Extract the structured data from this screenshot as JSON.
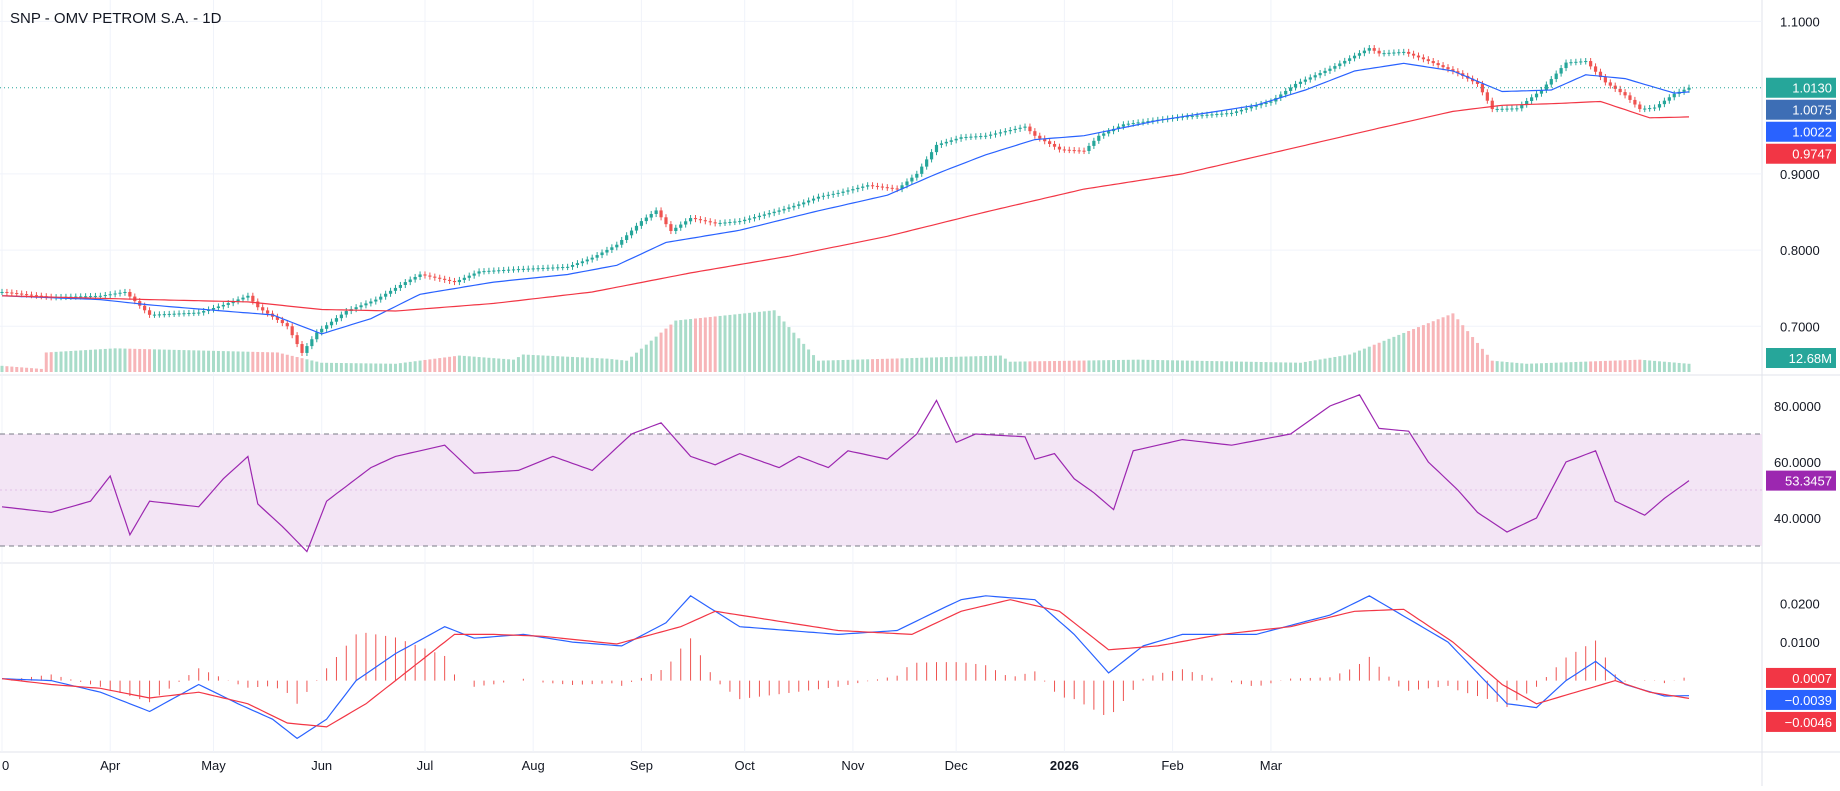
{
  "header": {
    "title": "SNP - OMV PETROM S.A. - 1D"
  },
  "colors": {
    "up": "#26a69a",
    "down": "#ef5350",
    "vol_up": "#a8dcc9",
    "vol_down": "#f7b5b8",
    "sma_short": "#2962ff",
    "sma_long": "#f23645",
    "rsi": "#9c27b0",
    "rsi_band": "#f3e5f5",
    "macd": "#2962ff",
    "signal": "#f23645",
    "hist": "#ef5350",
    "price_line": "#26a69a"
  },
  "chart_data": [
    {
      "type": "candlestick",
      "name": "price",
      "x_ticks": [
        "0",
        "Apr",
        "May",
        "Jun",
        "Jul",
        "Aug",
        "Sep",
        "Oct",
        "Nov",
        "Dec",
        "2026",
        "Feb",
        "Mar"
      ],
      "y_ticks": [
        "1.1000",
        "0.9000",
        "0.8000",
        "0.7000"
      ],
      "ylim": [
        0.64,
        1.115
      ],
      "last_close": 1.013,
      "price_path": [
        [
          0,
          0.745
        ],
        [
          10,
          0.738
        ],
        [
          20,
          0.74
        ],
        [
          25,
          0.745
        ],
        [
          30,
          0.715
        ],
        [
          40,
          0.718
        ],
        [
          45,
          0.728
        ],
        [
          50,
          0.74
        ],
        [
          52,
          0.725
        ],
        [
          58,
          0.7
        ],
        [
          61,
          0.665
        ],
        [
          64,
          0.692
        ],
        [
          70,
          0.72
        ],
        [
          76,
          0.735
        ],
        [
          82,
          0.758
        ],
        [
          85,
          0.768
        ],
        [
          92,
          0.758
        ],
        [
          97,
          0.772
        ],
        [
          105,
          0.775
        ],
        [
          115,
          0.778
        ],
        [
          120,
          0.79
        ],
        [
          125,
          0.807
        ],
        [
          130,
          0.838
        ],
        [
          133,
          0.852
        ],
        [
          136,
          0.825
        ],
        [
          140,
          0.842
        ],
        [
          145,
          0.835
        ],
        [
          150,
          0.838
        ],
        [
          158,
          0.852
        ],
        [
          162,
          0.86
        ],
        [
          166,
          0.87
        ],
        [
          170,
          0.875
        ],
        [
          176,
          0.885
        ],
        [
          182,
          0.88
        ],
        [
          186,
          0.9
        ],
        [
          190,
          0.938
        ],
        [
          195,
          0.948
        ],
        [
          200,
          0.95
        ],
        [
          208,
          0.962
        ],
        [
          210,
          0.95
        ],
        [
          215,
          0.932
        ],
        [
          220,
          0.93
        ],
        [
          223,
          0.95
        ],
        [
          228,
          0.965
        ],
        [
          240,
          0.975
        ],
        [
          250,
          0.98
        ],
        [
          255,
          0.99
        ],
        [
          258,
          0.995
        ],
        [
          263,
          1.018
        ],
        [
          270,
          1.038
        ],
        [
          275,
          1.055
        ],
        [
          278,
          1.065
        ],
        [
          280,
          1.058
        ],
        [
          285,
          1.06
        ],
        [
          290,
          1.048
        ],
        [
          296,
          1.032
        ],
        [
          300,
          1.018
        ],
        [
          303,
          0.985
        ],
        [
          308,
          0.986
        ],
        [
          313,
          1.01
        ],
        [
          318,
          1.046
        ],
        [
          322,
          1.048
        ],
        [
          326,
          1.02
        ],
        [
          330,
          1.003
        ],
        [
          333,
          0.985
        ],
        [
          336,
          0.987
        ],
        [
          340,
          1.005
        ],
        [
          343,
          1.013
        ]
      ],
      "sma_short_path": [
        [
          0,
          0.74
        ],
        [
          20,
          0.735
        ],
        [
          30,
          0.728
        ],
        [
          45,
          0.72
        ],
        [
          55,
          0.715
        ],
        [
          65,
          0.69
        ],
        [
          75,
          0.71
        ],
        [
          85,
          0.742
        ],
        [
          100,
          0.758
        ],
        [
          115,
          0.768
        ],
        [
          125,
          0.78
        ],
        [
          135,
          0.81
        ],
        [
          150,
          0.826
        ],
        [
          165,
          0.85
        ],
        [
          180,
          0.872
        ],
        [
          190,
          0.9
        ],
        [
          200,
          0.925
        ],
        [
          210,
          0.945
        ],
        [
          220,
          0.95
        ],
        [
          235,
          0.97
        ],
        [
          255,
          0.99
        ],
        [
          265,
          1.01
        ],
        [
          275,
          1.035
        ],
        [
          285,
          1.045
        ],
        [
          295,
          1.035
        ],
        [
          305,
          1.008
        ],
        [
          315,
          1.01
        ],
        [
          322,
          1.03
        ],
        [
          330,
          1.025
        ],
        [
          340,
          1.006
        ],
        [
          343,
          1.0075
        ]
      ],
      "sma_long_path": [
        [
          0,
          0.74
        ],
        [
          30,
          0.735
        ],
        [
          50,
          0.732
        ],
        [
          65,
          0.722
        ],
        [
          80,
          0.72
        ],
        [
          100,
          0.73
        ],
        [
          120,
          0.745
        ],
        [
          140,
          0.77
        ],
        [
          160,
          0.792
        ],
        [
          180,
          0.818
        ],
        [
          200,
          0.85
        ],
        [
          220,
          0.88
        ],
        [
          240,
          0.9
        ],
        [
          260,
          0.93
        ],
        [
          280,
          0.96
        ],
        [
          295,
          0.982
        ],
        [
          305,
          0.99
        ],
        [
          315,
          0.992
        ],
        [
          325,
          0.995
        ],
        [
          335,
          0.9735
        ],
        [
          343,
          0.9747
        ]
      ],
      "volume_path": [
        [
          0,
          6
        ],
        [
          8,
          3
        ],
        [
          9,
          19
        ],
        [
          23,
          23
        ],
        [
          56,
          19
        ],
        [
          65,
          9
        ],
        [
          80,
          8
        ],
        [
          93,
          16
        ],
        [
          104,
          12
        ],
        [
          106,
          17
        ],
        [
          123,
          13
        ],
        [
          127,
          11
        ],
        [
          137,
          50
        ],
        [
          157,
          60
        ],
        [
          166,
          11
        ],
        [
          203,
          16
        ],
        [
          205,
          10
        ],
        [
          231,
          12
        ],
        [
          264,
          9
        ],
        [
          274,
          17
        ],
        [
          295,
          57
        ],
        [
          303,
          11
        ],
        [
          310,
          8
        ],
        [
          333,
          12
        ],
        [
          343,
          8
        ]
      ],
      "price_tags": [
        {
          "label": "1.0130",
          "value": 1.013,
          "color": "#26a69a"
        },
        {
          "label": "1.0075",
          "value": 1.0075,
          "color": "#3d6eb5"
        },
        {
          "label": "1.0022",
          "value": 1.0022,
          "color": "#2962ff"
        },
        {
          "label": "0.9747",
          "value": 0.9747,
          "color": "#f23645"
        }
      ],
      "volume_label": "12.68M"
    },
    {
      "type": "line",
      "name": "rsi",
      "y_ticks": [
        "80.0000",
        "60.0000",
        "40.0000"
      ],
      "ylim": [
        25,
        90
      ],
      "band": [
        30,
        70
      ],
      "last_value_label": "53.3457",
      "path": [
        [
          0,
          44
        ],
        [
          10,
          42
        ],
        [
          18,
          46
        ],
        [
          22,
          55
        ],
        [
          26,
          34
        ],
        [
          30,
          46
        ],
        [
          40,
          44
        ],
        [
          45,
          54
        ],
        [
          50,
          62
        ],
        [
          52,
          45
        ],
        [
          57,
          37
        ],
        [
          62,
          28
        ],
        [
          66,
          46
        ],
        [
          75,
          58
        ],
        [
          80,
          62
        ],
        [
          90,
          66
        ],
        [
          96,
          56
        ],
        [
          105,
          57
        ],
        [
          112,
          62
        ],
        [
          120,
          57
        ],
        [
          128,
          70
        ],
        [
          134,
          74
        ],
        [
          140,
          62
        ],
        [
          145,
          59
        ],
        [
          150,
          63
        ],
        [
          158,
          58
        ],
        [
          162,
          62
        ],
        [
          168,
          58
        ],
        [
          172,
          64
        ],
        [
          180,
          61
        ],
        [
          186,
          70
        ],
        [
          190,
          82
        ],
        [
          194,
          67
        ],
        [
          198,
          70
        ],
        [
          208,
          69
        ],
        [
          210,
          61
        ],
        [
          214,
          63
        ],
        [
          218,
          54
        ],
        [
          222,
          49
        ],
        [
          226,
          43
        ],
        [
          230,
          64
        ],
        [
          240,
          68
        ],
        [
          250,
          66
        ],
        [
          256,
          68
        ],
        [
          262,
          70
        ],
        [
          270,
          80
        ],
        [
          276,
          84
        ],
        [
          280,
          72
        ],
        [
          286,
          71
        ],
        [
          290,
          60
        ],
        [
          296,
          50
        ],
        [
          300,
          42
        ],
        [
          306,
          35
        ],
        [
          312,
          40
        ],
        [
          318,
          60
        ],
        [
          324,
          64
        ],
        [
          328,
          46
        ],
        [
          334,
          41
        ],
        [
          338,
          47
        ],
        [
          343,
          53.35
        ]
      ]
    },
    {
      "type": "line",
      "name": "macd",
      "y_ticks": [
        "0.0200",
        "0.0100"
      ],
      "ylim": [
        -0.018,
        0.03
      ],
      "macd_path": [
        [
          0,
          0.0005
        ],
        [
          10,
          0.0
        ],
        [
          15,
          -0.0015
        ],
        [
          20,
          -0.003
        ],
        [
          30,
          -0.008
        ],
        [
          40,
          -0.001
        ],
        [
          48,
          -0.006
        ],
        [
          55,
          -0.01
        ],
        [
          60,
          -0.015
        ],
        [
          66,
          -0.01
        ],
        [
          72,
          0.0
        ],
        [
          80,
          0.007
        ],
        [
          90,
          0.014
        ],
        [
          96,
          0.011
        ],
        [
          106,
          0.012
        ],
        [
          116,
          0.01
        ],
        [
          126,
          0.009
        ],
        [
          135,
          0.015
        ],
        [
          140,
          0.022
        ],
        [
          150,
          0.014
        ],
        [
          160,
          0.013
        ],
        [
          170,
          0.012
        ],
        [
          182,
          0.013
        ],
        [
          190,
          0.018
        ],
        [
          195,
          0.021
        ],
        [
          200,
          0.022
        ],
        [
          210,
          0.021
        ],
        [
          218,
          0.012
        ],
        [
          225,
          0.002
        ],
        [
          232,
          0.009
        ],
        [
          240,
          0.012
        ],
        [
          255,
          0.012
        ],
        [
          270,
          0.017
        ],
        [
          278,
          0.022
        ],
        [
          286,
          0.016
        ],
        [
          294,
          0.01
        ],
        [
          300,
          0.002
        ],
        [
          306,
          -0.006
        ],
        [
          312,
          -0.007
        ],
        [
          318,
          0.0
        ],
        [
          324,
          0.005
        ],
        [
          330,
          -0.001
        ],
        [
          338,
          -0.004
        ],
        [
          343,
          -0.0039
        ]
      ],
      "signal_path": [
        [
          0,
          0.0005
        ],
        [
          10,
          -0.001
        ],
        [
          20,
          -0.002
        ],
        [
          30,
          -0.0045
        ],
        [
          40,
          -0.003
        ],
        [
          50,
          -0.006
        ],
        [
          58,
          -0.011
        ],
        [
          66,
          -0.012
        ],
        [
          74,
          -0.006
        ],
        [
          82,
          0.002
        ],
        [
          92,
          0.012
        ],
        [
          100,
          0.012
        ],
        [
          110,
          0.0115
        ],
        [
          125,
          0.0095
        ],
        [
          138,
          0.014
        ],
        [
          145,
          0.018
        ],
        [
          155,
          0.016
        ],
        [
          170,
          0.013
        ],
        [
          185,
          0.012
        ],
        [
          195,
          0.018
        ],
        [
          205,
          0.021
        ],
        [
          215,
          0.018
        ],
        [
          225,
          0.008
        ],
        [
          235,
          0.009
        ],
        [
          248,
          0.012
        ],
        [
          262,
          0.014
        ],
        [
          275,
          0.018
        ],
        [
          285,
          0.0185
        ],
        [
          295,
          0.01
        ],
        [
          305,
          -0.001
        ],
        [
          312,
          -0.006
        ],
        [
          320,
          -0.003
        ],
        [
          328,
          0.0
        ],
        [
          335,
          -0.003
        ],
        [
          343,
          -0.0046
        ]
      ],
      "value_tags": [
        {
          "label": "0.0007",
          "value": 0.0007,
          "color": "#f23645"
        },
        {
          "label": "−0.0039",
          "value": -0.0039,
          "color": "#2962ff"
        },
        {
          "label": "−0.0046",
          "value": -0.0046,
          "color": "#f23645"
        }
      ]
    }
  ]
}
